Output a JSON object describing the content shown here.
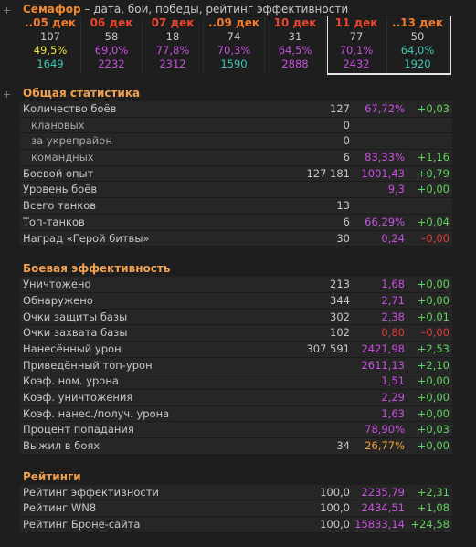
{
  "header": {
    "title": "Семафор",
    "subtitle": " – дата, бои, победы, рейтинг эффективности"
  },
  "days": [
    {
      "date": "..05 дек",
      "date_color": "#f07a30",
      "battles": "107",
      "winrate": "49,5%",
      "winrate_color": "#e8e040",
      "rating": "1649",
      "rating_color": "#3cc8b4"
    },
    {
      "date": "06 дек",
      "date_color": "#e8462e",
      "battles": "58",
      "winrate": "69,0%",
      "winrate_color": "#c850e0",
      "rating": "2232",
      "rating_color": "#c850e0"
    },
    {
      "date": "07 дек",
      "date_color": "#e8462e",
      "battles": "18",
      "winrate": "77,8%",
      "winrate_color": "#c850e0",
      "rating": "2312",
      "rating_color": "#c850e0"
    },
    {
      "date": "..09 дек",
      "date_color": "#f07a30",
      "battles": "74",
      "winrate": "70,3%",
      "winrate_color": "#c850e0",
      "rating": "1590",
      "rating_color": "#3cc8b4"
    },
    {
      "date": "10 дек",
      "date_color": "#e8462e",
      "battles": "31",
      "winrate": "64,5%",
      "winrate_color": "#c850e0",
      "rating": "2888",
      "rating_color": "#c850e0"
    },
    {
      "date": "11 дек",
      "date_color": "#e8462e",
      "battles": "77",
      "winrate": "70,1%",
      "winrate_color": "#c850e0",
      "rating": "2432",
      "rating_color": "#c850e0"
    },
    {
      "date": "..13 дек",
      "date_color": "#f07a30",
      "battles": "50",
      "winrate": "64,0%",
      "winrate_color": "#3cc8b4",
      "rating": "1920",
      "rating_color": "#3cc8b4"
    }
  ],
  "sections": [
    {
      "title": "Общая статистика",
      "rows": [
        {
          "label": "Количество боёв",
          "count": "127",
          "value": "67,72%",
          "delta": "+0,03",
          "children": [
            {
              "label": "клановых",
              "count": "0"
            },
            {
              "label": "за укрепрайон",
              "count": "0"
            },
            {
              "label": "командных",
              "count": "6",
              "value": "83,33%",
              "delta": "+1,16"
            }
          ]
        },
        {
          "label": "Боевой опыт",
          "count": "127 181",
          "value": "1001,43",
          "delta": "+0,79"
        },
        {
          "label": "Уровень боёв",
          "value": "9,3",
          "delta": "+0,00"
        },
        {
          "label": "Всего танков",
          "count": "13"
        },
        {
          "label": "Топ-танков",
          "count": "6",
          "value": "66,29%",
          "delta": "+0,04"
        },
        {
          "label": "Наград «Герой битвы»",
          "count": "30",
          "value": "0,24",
          "delta": "–0,00",
          "delta_color": "#e03a3a"
        }
      ]
    },
    {
      "title": "Боевая эффективность",
      "rows": [
        {
          "label": "Уничтожено",
          "count": "213",
          "value": "1,68",
          "delta": "+0,00"
        },
        {
          "label": "Обнаружено",
          "count": "344",
          "value": "2,71",
          "delta": "+0,00"
        },
        {
          "label": "Очки защиты базы",
          "count": "302",
          "value": "2,38",
          "delta": "+0,01"
        },
        {
          "label": "Очки захвата базы",
          "count": "102",
          "value": "0,80",
          "value_color": "#e03a3a",
          "delta": "–0,00",
          "delta_color": "#e03a3a"
        },
        {
          "label": "Нанесённый урон",
          "count": "307 591",
          "value": "2421,98",
          "delta": "+2,53"
        },
        {
          "label": "Приведённый топ-урон",
          "value": "2611,13",
          "delta": "+2,10"
        },
        {
          "label": "Коэф. ном. урона",
          "value": "1,51",
          "delta": "+0,00"
        },
        {
          "label": "Коэф. уничтожения",
          "value": "2,29",
          "delta": "+0,00"
        },
        {
          "label": "Коэф. нанес./получ. урона",
          "value": "1,63",
          "delta": "+0,00"
        },
        {
          "label": "Процент попадания",
          "value": "78,90%",
          "delta": "+0,03"
        },
        {
          "label": "Выжил в боях",
          "count": "34",
          "value": "26,77%",
          "value_color": "#f0a030",
          "delta": "+0,00"
        }
      ]
    },
    {
      "title": "Рейтинги",
      "rows": [
        {
          "label": "Рейтинг эффективности",
          "count": "100,0",
          "value": "2235,79",
          "delta": "+2,31"
        },
        {
          "label": "Рейтинг WN8",
          "count": "100,0",
          "value": "2434,51",
          "delta": "+1,08"
        },
        {
          "label": "Рейтинг Броне-сайта",
          "count": "100,0",
          "value": "15833,14",
          "delta": "+24,58"
        }
      ]
    }
  ]
}
